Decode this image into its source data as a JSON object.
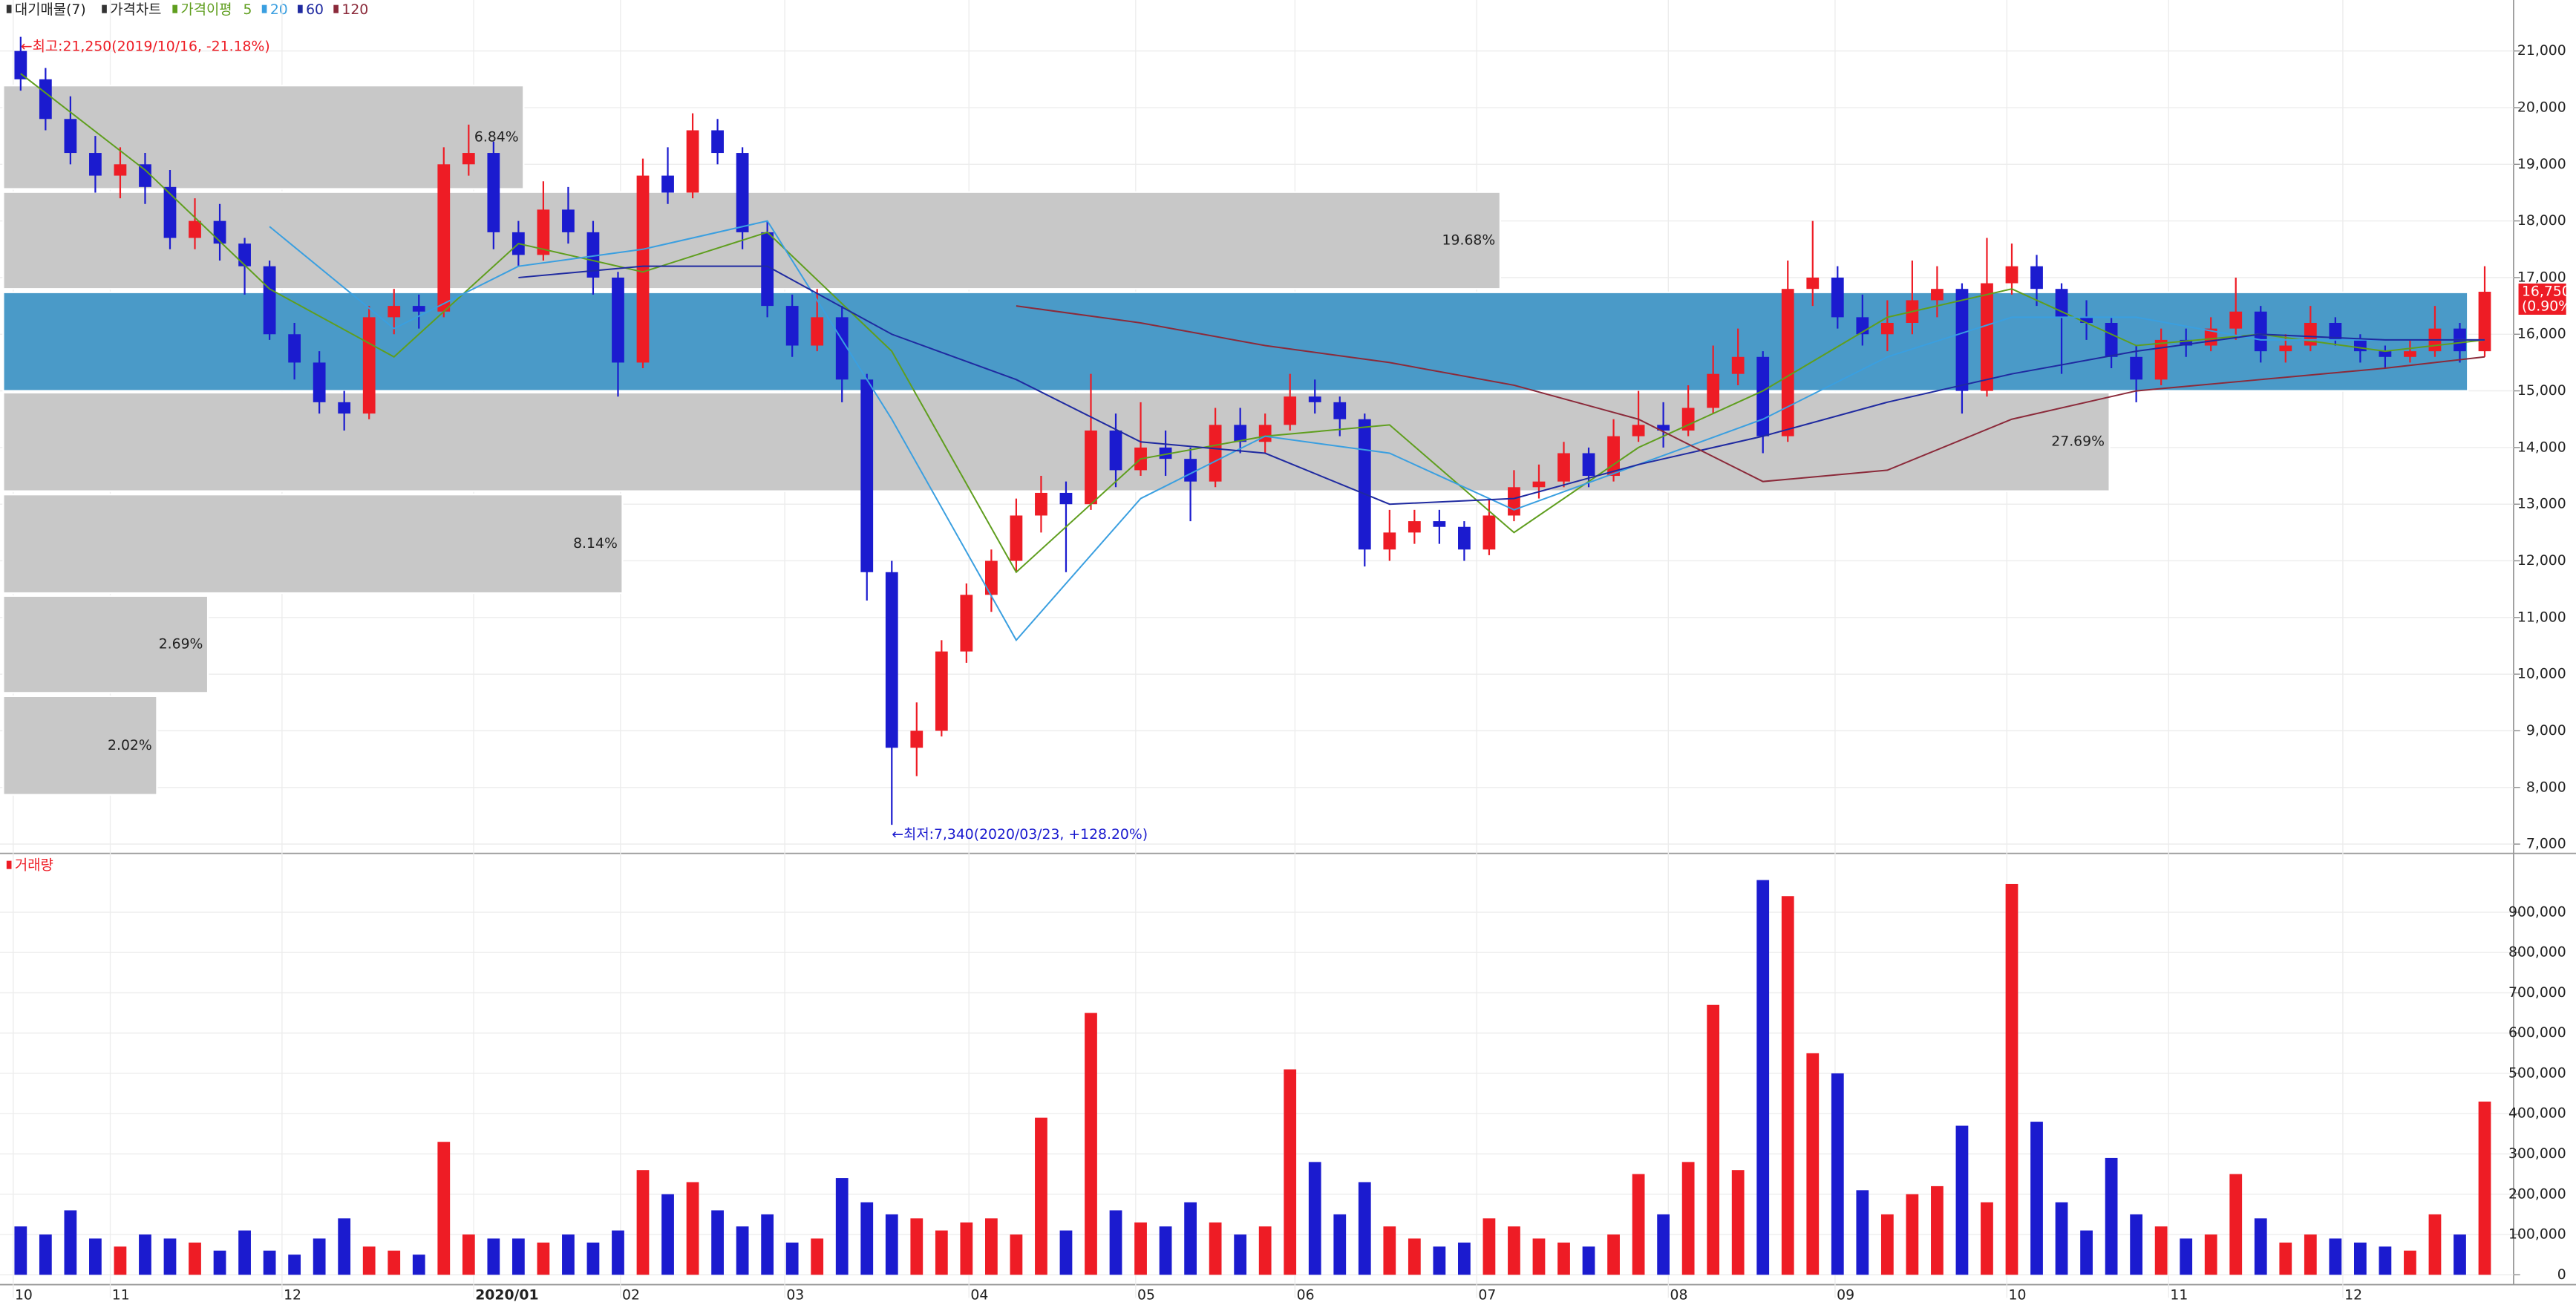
{
  "chart_data": [
    {
      "type": "candlestick",
      "legend": [
        "대기매물(7)",
        "가격차트",
        "가격이평"
      ],
      "up_color": "#ee1c25",
      "down_color": "#1b1bcf",
      "xlim": [
        0,
        100
      ],
      "ylim": [
        6850,
        21900
      ],
      "xticks": [
        {
          "value": 0.2,
          "label": "10"
        },
        {
          "value": 4.1,
          "label": "11"
        },
        {
          "value": 11.0,
          "label": "12"
        },
        {
          "value": 18.7,
          "label": "2020/01"
        },
        {
          "value": 24.6,
          "label": "02"
        },
        {
          "value": 31.2,
          "label": "03"
        },
        {
          "value": 38.6,
          "label": "04"
        },
        {
          "value": 45.3,
          "label": "05"
        },
        {
          "value": 51.7,
          "label": "06"
        },
        {
          "value": 59.0,
          "label": "07"
        },
        {
          "value": 66.7,
          "label": "08"
        },
        {
          "value": 73.4,
          "label": "09"
        },
        {
          "value": 80.3,
          "label": "10"
        },
        {
          "value": 86.8,
          "label": "11"
        },
        {
          "value": 93.8,
          "label": "12"
        }
      ],
      "yticks": [
        {
          "value": 7000,
          "label": "7,000"
        },
        {
          "value": 8000,
          "label": "8,000"
        },
        {
          "value": 9000,
          "label": "9,000"
        },
        {
          "value": 10000,
          "label": "10,000"
        },
        {
          "value": 11000,
          "label": "11,000"
        },
        {
          "value": 12000,
          "label": "12,000"
        },
        {
          "value": 13000,
          "label": "13,000"
        },
        {
          "value": 14000,
          "label": "14,000"
        },
        {
          "value": 15000,
          "label": "15,000"
        },
        {
          "value": 16000,
          "label": "16,000"
        },
        {
          "value": 17000,
          "label": "17,000"
        },
        {
          "value": 18000,
          "label": "18,000"
        },
        {
          "value": 19000,
          "label": "19,000"
        },
        {
          "value": 20000,
          "label": "20,000"
        },
        {
          "value": 21000,
          "label": "21,000"
        }
      ],
      "open": [
        21000,
        20500,
        19800,
        19200,
        18800,
        19000,
        18600,
        17700,
        18000,
        17600,
        17200,
        16000,
        15500,
        14800,
        14600,
        16300,
        16500,
        16400,
        19000,
        19200,
        17800,
        17400,
        18200,
        17800,
        17000,
        15500,
        18800,
        18500,
        19600,
        19200,
        17800,
        16500,
        15800,
        16300,
        15200,
        11800,
        8700,
        9000,
        10400,
        11400,
        12000,
        12800,
        13200,
        13000,
        14300,
        13600,
        14000,
        13800,
        13400,
        14400,
        14100,
        14400,
        14900,
        14800,
        14500,
        12200,
        12500,
        12700,
        12600,
        12200,
        12800,
        13300,
        13400,
        13900,
        13500,
        14200,
        14400,
        14300,
        14700,
        15300,
        15600,
        14200,
        16800,
        17000,
        16300,
        16000,
        16200,
        16600,
        16800,
        15000,
        16900,
        17200,
        16800,
        16300,
        16200,
        15600,
        15200,
        15900,
        15800,
        16100,
        16400,
        15700,
        15800,
        16200,
        15900,
        15700,
        15600,
        15700,
        16100,
        15700
      ],
      "high": [
        21250,
        20700,
        20200,
        19500,
        19300,
        19200,
        18900,
        18400,
        18300,
        17700,
        17300,
        16200,
        15700,
        15000,
        16500,
        16800,
        16700,
        19300,
        19700,
        19400,
        18000,
        18700,
        18600,
        18000,
        17100,
        19100,
        19300,
        19900,
        19800,
        19300,
        18000,
        16700,
        16800,
        16500,
        15300,
        12000,
        9500,
        10600,
        11600,
        12200,
        13100,
        13500,
        13400,
        15300,
        14600,
        14800,
        14300,
        14000,
        14700,
        14700,
        14600,
        15300,
        15200,
        14900,
        14600,
        12900,
        12900,
        12900,
        12700,
        13100,
        13600,
        13700,
        14100,
        14000,
        14500,
        15000,
        14800,
        15100,
        15800,
        16100,
        15700,
        17300,
        18000,
        17200,
        16700,
        16600,
        17300,
        17200,
        16900,
        17700,
        17600,
        17400,
        16900,
        16600,
        16300,
        15800,
        16100,
        16100,
        16300,
        17000,
        16500,
        16000,
        16500,
        16300,
        16000,
        15800,
        15900,
        16500,
        16200,
        17200
      ],
      "low": [
        20300,
        19600,
        19000,
        18500,
        18400,
        18300,
        17500,
        17500,
        17300,
        16700,
        15900,
        15200,
        14600,
        14300,
        14500,
        16000,
        16100,
        16300,
        18800,
        17500,
        17200,
        17300,
        17600,
        16700,
        14900,
        15400,
        18300,
        18400,
        19000,
        17500,
        16300,
        15600,
        15700,
        14800,
        11300,
        7340,
        8200,
        8900,
        10200,
        11100,
        11800,
        12500,
        11800,
        12900,
        13300,
        13500,
        13500,
        12700,
        13300,
        13900,
        13900,
        14300,
        14600,
        14200,
        11900,
        12000,
        12300,
        12300,
        12000,
        12100,
        12700,
        13100,
        13300,
        13300,
        13400,
        14100,
        14000,
        14200,
        14600,
        15100,
        13900,
        14100,
        16500,
        16100,
        15800,
        15700,
        16000,
        16300,
        14600,
        14900,
        16700,
        16500,
        15300,
        15900,
        15400,
        14800,
        15100,
        15600,
        15700,
        15900,
        15500,
        15500,
        15700,
        15800,
        15500,
        15400,
        15500,
        15600,
        15500,
        15600
      ],
      "close": [
        20500,
        19800,
        19200,
        18800,
        19000,
        18600,
        17700,
        18000,
        17600,
        17200,
        16000,
        15500,
        14800,
        14600,
        16300,
        16500,
        16400,
        19000,
        19200,
        17800,
        17400,
        18200,
        17800,
        17000,
        15500,
        18800,
        18500,
        19600,
        19200,
        17800,
        16500,
        15800,
        16300,
        15200,
        11800,
        8700,
        9000,
        10400,
        11400,
        12000,
        12800,
        13200,
        13000,
        14300,
        13600,
        14000,
        13800,
        13400,
        14400,
        14100,
        14400,
        14900,
        14800,
        14500,
        12200,
        12500,
        12700,
        12600,
        12200,
        12800,
        13300,
        13400,
        13900,
        13500,
        14200,
        14400,
        14300,
        14700,
        15300,
        15600,
        14200,
        16800,
        17000,
        16300,
        16000,
        16200,
        16600,
        16800,
        15000,
        16900,
        17200,
        16800,
        16300,
        16200,
        15600,
        15200,
        15900,
        15800,
        16100,
        16400,
        15700,
        15800,
        16200,
        15900,
        15700,
        15600,
        15700,
        16100,
        15700,
        16750
      ],
      "ma_x": [
        0,
        5,
        10,
        15,
        20,
        25,
        30,
        35,
        40,
        45,
        50,
        55,
        60,
        65,
        70,
        75,
        80,
        85,
        90,
        95,
        99
      ],
      "series": [
        {
          "name": "5",
          "color": "#5f9e1e",
          "values": [
            20600,
            18900,
            16800,
            15600,
            17600,
            17100,
            17800,
            15700,
            11800,
            13800,
            14200,
            14400,
            12500,
            14000,
            15000,
            16300,
            16800,
            15800,
            16000,
            15700,
            15900
          ]
        },
        {
          "name": "20",
          "color": "#3a9fe0",
          "values": [
            null,
            null,
            17900,
            16100,
            17200,
            17500,
            18000,
            14500,
            10600,
            13100,
            14200,
            13900,
            12900,
            13700,
            14500,
            15600,
            16300,
            16300,
            15900,
            15900,
            15900
          ]
        },
        {
          "name": "60",
          "color": "#1f2aa0",
          "values": [
            null,
            null,
            null,
            null,
            17000,
            17200,
            17200,
            16000,
            15200,
            14100,
            13900,
            13000,
            13100,
            13700,
            14200,
            14800,
            15300,
            15700,
            16000,
            15900,
            15900
          ]
        },
        {
          "name": "120",
          "color": "#8b2a3a",
          "values": [
            null,
            null,
            null,
            null,
            null,
            null,
            null,
            null,
            16500,
            16200,
            15800,
            15500,
            15100,
            14500,
            13400,
            13600,
            14500,
            15000,
            15200,
            15400,
            15600
          ]
        }
      ],
      "volume_profile": {
        "low": [
          18565,
          16800,
          15000,
          13230,
          11430,
          9670,
          7870
        ],
        "high": [
          20390,
          18510,
          16740,
          14970,
          13170,
          11380,
          9610
        ],
        "values": [
          6.84,
          19.68,
          32.4,
          27.69,
          8.14,
          2.69,
          2.02
        ],
        "value_labels": [
          "6.84%",
          "19.68%",
          null,
          "27.69%",
          "8.14%",
          "2.69%",
          "2.02%"
        ],
        "highlight": 2
      },
      "annotations": [
        {
          "text": "←최고:21,250(2019/10/16, -21.18%)",
          "value": 21250,
          "index": 0
        },
        {
          "text": "←최저:7,340(2020/03/23, +128.20%)",
          "value": 7340,
          "index": 35
        }
      ],
      "last": {
        "value": 16750,
        "label": "16,750",
        "change": "(0.90%)"
      }
    },
    {
      "type": "bar",
      "title": "거래량",
      "ylim": [
        0,
        1040000
      ],
      "yticks": [
        0,
        {
          "value": 100000,
          "label": "100,000"
        },
        {
          "value": 200000,
          "label": "200,000"
        },
        {
          "value": 300000,
          "label": "300,000"
        },
        {
          "value": 400000,
          "label": "400,000"
        },
        {
          "value": 500000,
          "label": "500,000"
        },
        {
          "value": 600000,
          "label": "600,000"
        },
        {
          "value": 700000,
          "label": "700,000"
        },
        {
          "value": 800000,
          "label": "800,000"
        },
        {
          "value": 900000,
          "label": "900,000"
        }
      ],
      "values": [
        120000,
        100000,
        160000,
        90000,
        70000,
        100000,
        90000,
        80000,
        60000,
        110000,
        60000,
        50000,
        90000,
        140000,
        70000,
        60000,
        50000,
        330000,
        100000,
        90000,
        90000,
        80000,
        100000,
        80000,
        110000,
        260000,
        200000,
        230000,
        160000,
        120000,
        150000,
        80000,
        90000,
        240000,
        180000,
        150000,
        140000,
        110000,
        130000,
        140000,
        100000,
        390000,
        110000,
        650000,
        160000,
        130000,
        120000,
        180000,
        130000,
        100000,
        120000,
        510000,
        280000,
        150000,
        230000,
        120000,
        90000,
        70000,
        80000,
        140000,
        120000,
        90000,
        80000,
        70000,
        100000,
        250000,
        150000,
        280000,
        670000,
        260000,
        980000,
        940000,
        550000,
        500000,
        210000,
        150000,
        200000,
        220000,
        370000,
        180000,
        970000,
        380000,
        180000,
        110000,
        290000,
        150000,
        120000,
        90000,
        100000,
        250000,
        140000,
        80000,
        100000,
        90000,
        80000,
        70000,
        60000,
        150000,
        100000,
        430000
      ]
    }
  ]
}
